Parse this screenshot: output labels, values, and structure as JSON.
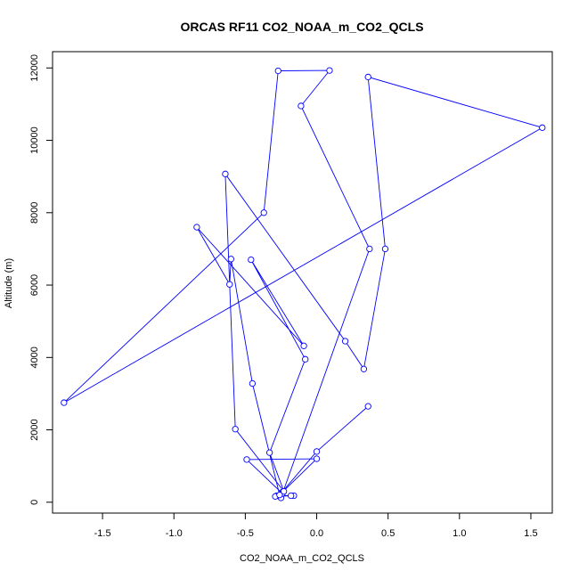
{
  "chart_data": {
    "type": "line",
    "title": "ORCAS RF11 CO2_NOAA_m_CO2_QCLS",
    "xlabel": "CO2_NOAA_m_CO2_QCLS",
    "ylabel": "Altitude (m)",
    "xlim": [
      -1.85,
      1.65
    ],
    "ylim": [
      -300,
      12450
    ],
    "xticks": [
      -1.5,
      -1.0,
      -0.5,
      0.0,
      0.5,
      1.0,
      1.5
    ],
    "xtick_labels": [
      "-1.5",
      "-1.0",
      "-0.5",
      "0.0",
      "0.5",
      "1.0",
      "1.5"
    ],
    "yticks": [
      0,
      2000,
      4000,
      6000,
      8000,
      10000,
      12000
    ],
    "ytick_labels": [
      "0",
      "2000",
      "4000",
      "6000",
      "8000",
      "10000",
      "12000"
    ],
    "grid": false,
    "legend": "none",
    "marker": "open-circle",
    "series": [
      {
        "color": "#0000ff",
        "points": [
          [
            -0.25,
            120
          ],
          [
            -0.28,
            180
          ],
          [
            -0.16,
            180
          ],
          [
            -0.18,
            180
          ],
          [
            -0.29,
            160
          ],
          [
            -0.24,
            280
          ],
          [
            0.0,
            1200
          ],
          [
            -0.49,
            1180
          ],
          [
            -0.24,
            240
          ],
          [
            0.37,
            7000
          ],
          [
            -0.11,
            10950
          ],
          [
            0.09,
            11930
          ],
          [
            -0.27,
            11920
          ],
          [
            -0.37,
            8000
          ],
          [
            -1.77,
            2750
          ],
          [
            1.58,
            10350
          ],
          [
            0.36,
            11750
          ],
          [
            0.48,
            7000
          ],
          [
            0.33,
            3680
          ],
          [
            0.2,
            4450
          ],
          [
            -0.64,
            9070
          ],
          [
            -0.57,
            2020
          ],
          [
            -0.23,
            300
          ],
          [
            -0.33,
            1370
          ],
          [
            -0.08,
            3950
          ],
          [
            -0.46,
            6700
          ],
          [
            -0.09,
            4320
          ],
          [
            -0.84,
            7600
          ],
          [
            -0.61,
            6020
          ],
          [
            -0.6,
            6720
          ],
          [
            -0.45,
            3280
          ],
          [
            -0.26,
            200
          ],
          [
            0.0,
            1400
          ],
          [
            0.36,
            2650
          ]
        ]
      }
    ]
  }
}
